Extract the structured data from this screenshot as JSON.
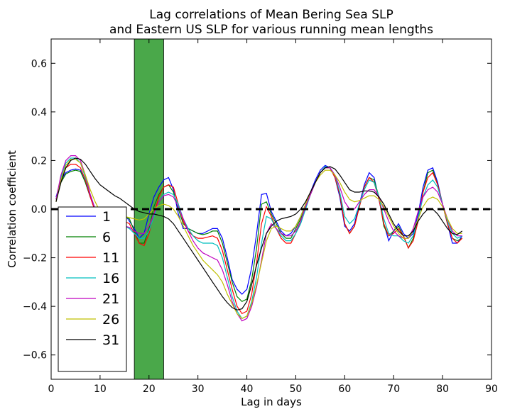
{
  "chart_data": {
    "type": "line",
    "title_line1": "Lag correlations of Mean Bering Sea SLP",
    "title_line2": "and Eastern US SLP for various running mean lengths",
    "xlabel": "Lag in days",
    "ylabel": "Correlation coefficient",
    "xlim": [
      0,
      90
    ],
    "ylim": [
      -0.7,
      0.7
    ],
    "xticks": [
      0,
      10,
      20,
      30,
      40,
      50,
      60,
      70,
      80,
      90
    ],
    "xtick_labels": [
      "0",
      "10",
      "20",
      "30",
      "40",
      "50",
      "60",
      "70",
      "80",
      "90"
    ],
    "yticks": [
      -0.6,
      -0.4,
      -0.2,
      0.0,
      0.2,
      0.4,
      0.6
    ],
    "ytick_labels": [
      "−0.6",
      "−0.4",
      "−0.2",
      "0.0",
      "0.2",
      "0.4",
      "0.6"
    ],
    "grid": false,
    "legend_position": "lower-left",
    "shaded_band": {
      "x_start": 17,
      "x_end": 23,
      "color": "#4aa84a"
    },
    "reference_line": {
      "y": 0.0,
      "style": "dashed",
      "color": "#000000"
    },
    "series": [
      {
        "name": "1",
        "color": "#0000ff",
        "x": [
          1,
          2,
          3,
          4,
          5,
          6,
          7,
          8,
          9,
          10,
          11,
          12,
          13,
          14,
          15,
          16,
          17,
          18,
          19,
          20,
          21,
          22,
          23,
          24,
          25,
          26,
          27,
          28,
          29,
          30,
          31,
          32,
          33,
          34,
          35,
          36,
          37,
          38,
          39,
          40,
          41,
          42,
          43,
          44,
          45,
          46,
          47,
          48,
          49,
          50,
          51,
          52,
          53,
          54,
          55,
          56,
          57,
          58,
          59,
          60,
          61,
          62,
          63,
          64,
          65,
          66,
          67,
          68,
          69,
          70,
          71,
          72,
          73,
          74,
          75,
          76,
          77,
          78,
          79,
          80,
          81,
          82,
          83,
          84
        ],
        "values": [
          0.05,
          0.12,
          0.15,
          0.16,
          0.165,
          0.16,
          0.11,
          0.05,
          0.0,
          -0.04,
          -0.05,
          -0.05,
          -0.05,
          -0.04,
          -0.02,
          -0.05,
          -0.08,
          -0.12,
          -0.1,
          -0.02,
          0.05,
          0.09,
          0.12,
          0.13,
          0.08,
          -0.02,
          -0.08,
          -0.08,
          -0.09,
          -0.1,
          -0.1,
          -0.09,
          -0.08,
          -0.08,
          -0.12,
          -0.2,
          -0.29,
          -0.33,
          -0.35,
          -0.33,
          -0.24,
          -0.1,
          0.06,
          0.065,
          -0.01,
          -0.05,
          -0.09,
          -0.11,
          -0.1,
          -0.07,
          -0.03,
          0.02,
          0.07,
          0.12,
          0.16,
          0.18,
          0.17,
          0.13,
          0.05,
          -0.07,
          -0.09,
          -0.06,
          0.02,
          0.1,
          0.15,
          0.13,
          0.04,
          -0.06,
          -0.13,
          -0.09,
          -0.06,
          -0.1,
          -0.12,
          -0.1,
          -0.02,
          0.09,
          0.16,
          0.17,
          0.11,
          0.02,
          -0.06,
          -0.14,
          -0.14,
          -0.11
        ]
      },
      {
        "name": "6",
        "color": "#008000",
        "x": [
          1,
          2,
          3,
          4,
          5,
          6,
          7,
          8,
          9,
          10,
          11,
          12,
          13,
          14,
          15,
          16,
          17,
          18,
          19,
          20,
          21,
          22,
          23,
          24,
          25,
          26,
          27,
          28,
          29,
          30,
          31,
          32,
          33,
          34,
          35,
          36,
          37,
          38,
          39,
          40,
          41,
          42,
          43,
          44,
          45,
          46,
          47,
          48,
          49,
          50,
          51,
          52,
          53,
          54,
          55,
          56,
          57,
          58,
          59,
          60,
          61,
          62,
          63,
          64,
          65,
          66,
          67,
          68,
          69,
          70,
          71,
          72,
          73,
          74,
          75,
          76,
          77,
          78,
          79,
          80,
          81,
          82,
          83,
          84
        ],
        "values": [
          0.04,
          0.11,
          0.145,
          0.155,
          0.16,
          0.155,
          0.11,
          0.05,
          0.0,
          -0.04,
          -0.055,
          -0.06,
          -0.06,
          -0.05,
          -0.03,
          -0.04,
          -0.09,
          -0.14,
          -0.14,
          -0.08,
          0.01,
          0.06,
          0.09,
          0.1,
          0.07,
          0.0,
          -0.06,
          -0.08,
          -0.09,
          -0.1,
          -0.105,
          -0.1,
          -0.09,
          -0.09,
          -0.14,
          -0.22,
          -0.3,
          -0.36,
          -0.38,
          -0.37,
          -0.29,
          -0.16,
          0.02,
          0.03,
          -0.02,
          -0.06,
          -0.1,
          -0.12,
          -0.12,
          -0.08,
          -0.04,
          0.01,
          0.06,
          0.11,
          0.15,
          0.17,
          0.17,
          0.13,
          0.06,
          -0.06,
          -0.1,
          -0.07,
          0.01,
          0.09,
          0.13,
          0.12,
          0.05,
          -0.07,
          -0.11,
          -0.09,
          -0.07,
          -0.11,
          -0.16,
          -0.12,
          -0.04,
          0.07,
          0.15,
          0.16,
          0.1,
          0.02,
          -0.06,
          -0.12,
          -0.13,
          -0.12
        ]
      },
      {
        "name": "11",
        "color": "#ff0000",
        "x": [
          1,
          2,
          3,
          4,
          5,
          6,
          7,
          8,
          9,
          10,
          11,
          12,
          13,
          14,
          15,
          16,
          17,
          18,
          19,
          20,
          21,
          22,
          23,
          24,
          25,
          26,
          27,
          28,
          29,
          30,
          31,
          32,
          33,
          34,
          35,
          36,
          37,
          38,
          39,
          40,
          41,
          42,
          43,
          44,
          45,
          46,
          47,
          48,
          49,
          50,
          51,
          52,
          53,
          54,
          55,
          56,
          57,
          58,
          59,
          60,
          61,
          62,
          63,
          64,
          65,
          66,
          67,
          68,
          69,
          70,
          71,
          72,
          73,
          74,
          75,
          76,
          77,
          78,
          79,
          80,
          81,
          82,
          83,
          84
        ],
        "values": [
          0.04,
          0.12,
          0.17,
          0.185,
          0.185,
          0.17,
          0.12,
          0.05,
          -0.01,
          -0.045,
          -0.06,
          -0.06,
          -0.06,
          -0.055,
          -0.05,
          -0.06,
          -0.1,
          -0.14,
          -0.15,
          -0.1,
          -0.02,
          0.05,
          0.09,
          0.1,
          0.09,
          0.02,
          -0.05,
          -0.09,
          -0.11,
          -0.12,
          -0.12,
          -0.115,
          -0.11,
          -0.12,
          -0.17,
          -0.25,
          -0.33,
          -0.4,
          -0.43,
          -0.42,
          -0.35,
          -0.22,
          -0.06,
          0.01,
          -0.03,
          -0.08,
          -0.12,
          -0.14,
          -0.14,
          -0.1,
          -0.05,
          0.01,
          0.06,
          0.11,
          0.15,
          0.17,
          0.17,
          0.13,
          0.06,
          -0.06,
          -0.1,
          -0.07,
          0.01,
          0.09,
          0.13,
          0.11,
          0.04,
          -0.06,
          -0.11,
          -0.1,
          -0.08,
          -0.11,
          -0.16,
          -0.13,
          -0.05,
          0.07,
          0.13,
          0.15,
          0.1,
          0.02,
          -0.06,
          -0.12,
          -0.14,
          -0.12
        ]
      },
      {
        "name": "16",
        "color": "#00bfbf",
        "x": [
          1,
          2,
          3,
          4,
          5,
          6,
          7,
          8,
          9,
          10,
          11,
          12,
          13,
          14,
          15,
          16,
          17,
          18,
          19,
          20,
          21,
          22,
          23,
          24,
          25,
          26,
          27,
          28,
          29,
          30,
          31,
          32,
          33,
          34,
          35,
          36,
          37,
          38,
          39,
          40,
          41,
          42,
          43,
          44,
          45,
          46,
          47,
          48,
          49,
          50,
          51,
          52,
          53,
          54,
          55,
          56,
          57,
          58,
          59,
          60,
          61,
          62,
          63,
          64,
          65,
          66,
          67,
          68,
          69,
          70,
          71,
          72,
          73,
          74,
          75,
          76,
          77,
          78,
          79,
          80,
          81,
          82,
          83,
          84
        ],
        "values": [
          0.04,
          0.13,
          0.19,
          0.21,
          0.21,
          0.19,
          0.13,
          0.06,
          0.0,
          -0.04,
          -0.06,
          -0.065,
          -0.07,
          -0.07,
          -0.07,
          -0.08,
          -0.1,
          -0.12,
          -0.12,
          -0.09,
          -0.03,
          0.03,
          0.06,
          0.07,
          0.06,
          0.02,
          -0.04,
          -0.08,
          -0.11,
          -0.13,
          -0.14,
          -0.14,
          -0.14,
          -0.15,
          -0.2,
          -0.28,
          -0.36,
          -0.42,
          -0.45,
          -0.44,
          -0.38,
          -0.28,
          -0.14,
          -0.03,
          -0.04,
          -0.08,
          -0.11,
          -0.13,
          -0.13,
          -0.1,
          -0.06,
          0.0,
          0.06,
          0.11,
          0.15,
          0.175,
          0.17,
          0.14,
          0.07,
          -0.03,
          -0.06,
          -0.04,
          0.02,
          0.08,
          0.12,
          0.11,
          0.05,
          -0.04,
          -0.1,
          -0.11,
          -0.11,
          -0.13,
          -0.14,
          -0.11,
          -0.04,
          0.05,
          0.1,
          0.12,
          0.09,
          0.02,
          -0.05,
          -0.1,
          -0.12,
          -0.11
        ]
      },
      {
        "name": "21",
        "color": "#bf00bf",
        "x": [
          1,
          2,
          3,
          4,
          5,
          6,
          7,
          8,
          9,
          10,
          11,
          12,
          13,
          14,
          15,
          16,
          17,
          18,
          19,
          20,
          21,
          22,
          23,
          24,
          25,
          26,
          27,
          28,
          29,
          30,
          31,
          32,
          33,
          34,
          35,
          36,
          37,
          38,
          39,
          40,
          41,
          42,
          43,
          44,
          45,
          46,
          47,
          48,
          49,
          50,
          51,
          52,
          53,
          54,
          55,
          56,
          57,
          58,
          59,
          60,
          61,
          62,
          63,
          64,
          65,
          66,
          67,
          68,
          69,
          70,
          71,
          72,
          73,
          74,
          75,
          76,
          77,
          78,
          79,
          80,
          81,
          82,
          83,
          84
        ],
        "values": [
          0.04,
          0.14,
          0.2,
          0.22,
          0.22,
          0.2,
          0.14,
          0.06,
          0.0,
          -0.04,
          -0.06,
          -0.065,
          -0.065,
          -0.065,
          -0.07,
          -0.075,
          -0.09,
          -0.1,
          -0.1,
          -0.07,
          -0.02,
          0.03,
          0.055,
          0.06,
          0.05,
          0.01,
          -0.04,
          -0.09,
          -0.13,
          -0.16,
          -0.18,
          -0.19,
          -0.2,
          -0.21,
          -0.25,
          -0.31,
          -0.38,
          -0.43,
          -0.46,
          -0.45,
          -0.4,
          -0.32,
          -0.21,
          -0.1,
          -0.06,
          -0.08,
          -0.1,
          -0.11,
          -0.11,
          -0.09,
          -0.05,
          0.01,
          0.06,
          0.11,
          0.15,
          0.17,
          0.17,
          0.14,
          0.09,
          0.03,
          0.0,
          0.0,
          0.03,
          0.06,
          0.08,
          0.08,
          0.05,
          0.0,
          -0.05,
          -0.09,
          -0.11,
          -0.12,
          -0.12,
          -0.08,
          -0.01,
          0.05,
          0.08,
          0.09,
          0.07,
          0.02,
          -0.04,
          -0.09,
          -0.11,
          -0.11
        ]
      },
      {
        "name": "26",
        "color": "#bfbf00",
        "x": [
          1,
          2,
          3,
          4,
          5,
          6,
          7,
          8,
          9,
          10,
          11,
          12,
          13,
          14,
          15,
          16,
          17,
          18,
          19,
          20,
          21,
          22,
          23,
          24,
          25,
          26,
          27,
          28,
          29,
          30,
          31,
          32,
          33,
          34,
          35,
          36,
          37,
          38,
          39,
          40,
          41,
          42,
          43,
          44,
          45,
          46,
          47,
          48,
          49,
          50,
          51,
          52,
          53,
          54,
          55,
          56,
          57,
          58,
          59,
          60,
          61,
          62,
          63,
          64,
          65,
          66,
          67,
          68,
          69,
          70,
          71,
          72,
          73,
          74,
          75,
          76,
          77,
          78,
          79,
          80,
          81,
          82,
          83,
          84
        ],
        "values": [
          0.03,
          0.12,
          0.18,
          0.205,
          0.205,
          0.19,
          0.14,
          0.08,
          0.03,
          -0.01,
          -0.03,
          -0.03,
          -0.03,
          -0.03,
          -0.03,
          -0.035,
          -0.04,
          -0.045,
          -0.04,
          -0.02,
          0.0,
          0.015,
          0.02,
          0.015,
          0.0,
          -0.03,
          -0.07,
          -0.11,
          -0.15,
          -0.18,
          -0.21,
          -0.23,
          -0.25,
          -0.27,
          -0.3,
          -0.35,
          -0.39,
          -0.43,
          -0.45,
          -0.44,
          -0.39,
          -0.31,
          -0.22,
          -0.13,
          -0.08,
          -0.07,
          -0.08,
          -0.09,
          -0.09,
          -0.07,
          -0.03,
          0.02,
          0.07,
          0.11,
          0.14,
          0.16,
          0.16,
          0.14,
          0.11,
          0.07,
          0.04,
          0.03,
          0.035,
          0.045,
          0.055,
          0.055,
          0.04,
          0.01,
          -0.03,
          -0.07,
          -0.1,
          -0.12,
          -0.12,
          -0.09,
          -0.04,
          0.01,
          0.04,
          0.05,
          0.04,
          0.01,
          -0.04,
          -0.08,
          -0.1,
          -0.1
        ]
      },
      {
        "name": "31",
        "color": "#000000",
        "x": [
          1,
          2,
          3,
          4,
          5,
          6,
          7,
          8,
          9,
          10,
          11,
          12,
          13,
          14,
          15,
          16,
          17,
          18,
          19,
          20,
          21,
          22,
          23,
          24,
          25,
          26,
          27,
          28,
          29,
          30,
          31,
          32,
          33,
          34,
          35,
          36,
          37,
          38,
          39,
          40,
          41,
          42,
          43,
          44,
          45,
          46,
          47,
          48,
          49,
          50,
          51,
          52,
          53,
          54,
          55,
          56,
          57,
          58,
          59,
          60,
          61,
          62,
          63,
          64,
          65,
          66,
          67,
          68,
          69,
          70,
          71,
          72,
          73,
          74,
          75,
          76,
          77,
          78,
          79,
          80,
          81,
          82,
          83,
          84
        ],
        "values": [
          0.03,
          0.11,
          0.17,
          0.2,
          0.21,
          0.205,
          0.185,
          0.155,
          0.125,
          0.1,
          0.085,
          0.07,
          0.055,
          0.045,
          0.03,
          0.015,
          0.0,
          -0.01,
          -0.015,
          -0.02,
          -0.02,
          -0.025,
          -0.03,
          -0.04,
          -0.06,
          -0.09,
          -0.12,
          -0.15,
          -0.18,
          -0.21,
          -0.24,
          -0.27,
          -0.3,
          -0.33,
          -0.36,
          -0.385,
          -0.405,
          -0.415,
          -0.41,
          -0.38,
          -0.31,
          -0.23,
          -0.16,
          -0.1,
          -0.07,
          -0.05,
          -0.04,
          -0.035,
          -0.03,
          -0.02,
          0.0,
          0.03,
          0.07,
          0.11,
          0.15,
          0.17,
          0.175,
          0.165,
          0.14,
          0.11,
          0.08,
          0.07,
          0.07,
          0.075,
          0.075,
          0.07,
          0.05,
          0.02,
          -0.02,
          -0.06,
          -0.09,
          -0.11,
          -0.11,
          -0.09,
          -0.05,
          -0.02,
          0.0,
          0.0,
          -0.02,
          -0.05,
          -0.08,
          -0.1,
          -0.105,
          -0.09
        ]
      }
    ]
  }
}
